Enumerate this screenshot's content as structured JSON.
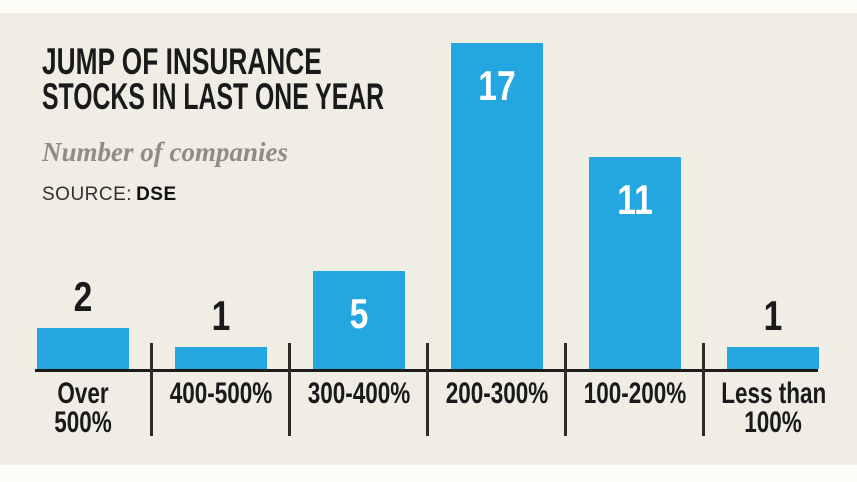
{
  "header": {
    "title_line1": "JUMP OF INSURANCE",
    "title_line2": "STOCKS IN LAST ONE YEAR",
    "subtitle": "Number of companies",
    "source_label": "SOURCE:",
    "source_value": "DSE"
  },
  "colors": {
    "bar_blue": "#24A7E0",
    "panel_background": "#F0EDE5",
    "page_background": "#FDFCF7",
    "text_dark": "#1A1A1A",
    "subtitle_gray": "#8D8C85",
    "value_label_light": "#FFFFFF"
  },
  "chart_data": {
    "type": "bar",
    "title": "JUMP OF INSURANCE STOCKS IN LAST ONE YEAR",
    "subtitle": "Number of companies",
    "source": "DSE",
    "categories": [
      "Over 500%",
      "400-500%",
      "300-400%",
      "200-300%",
      "100-200%",
      "Less than 100%"
    ],
    "category_lines": [
      [
        "Over",
        "500%"
      ],
      [
        "400-500%"
      ],
      [
        "300-400%"
      ],
      [
        "200-300%"
      ],
      [
        "100-200%"
      ],
      [
        "Less than",
        "100%"
      ]
    ],
    "values": [
      2,
      1,
      5,
      17,
      11,
      1
    ],
    "value_label_placement": [
      "above",
      "above",
      "inside",
      "inside",
      "inside",
      "above"
    ],
    "ylim": [
      0,
      18
    ],
    "grid": false,
    "legend": false,
    "bar_color": "#24A7E0",
    "xlabel": "",
    "ylabel": "Number of companies"
  }
}
